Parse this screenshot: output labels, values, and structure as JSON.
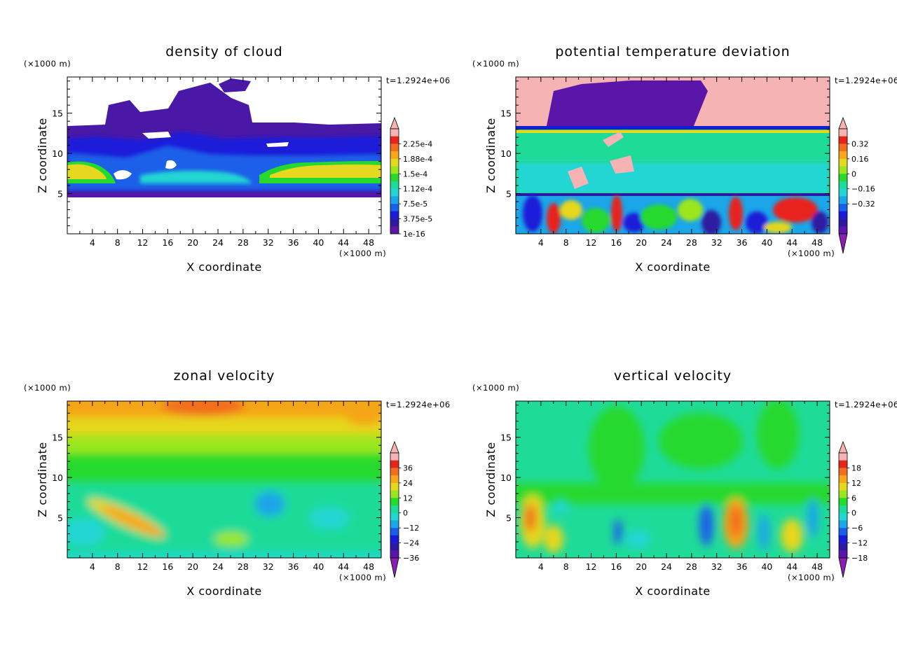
{
  "chart_data": [
    {
      "type": "heatmap",
      "title": "density of cloud",
      "xlabel": "X coordinate",
      "ylabel": "Z coordinate",
      "x_unit": "(×1000 m)",
      "y_unit": "(×1000 m)",
      "time_label": "t=1.2924e+06",
      "xlim": [
        0,
        50
      ],
      "ylim": [
        0,
        19.5
      ],
      "x_ticks": [
        "4",
        "8",
        "12",
        "16",
        "20",
        "24",
        "28",
        "32",
        "36",
        "40",
        "44",
        "48"
      ],
      "y_ticks": [
        "5",
        "10",
        "15"
      ],
      "colorbar_labels": [
        "2.25e-4",
        "1.88e-4",
        "1.5e-4",
        "1.12e-4",
        "7.5e-5",
        "3.75e-5",
        "1e-16"
      ],
      "colorbar_colors": [
        "#f5b3b3",
        "#e8231c",
        "#f26d1f",
        "#f5a619",
        "#e6d71f",
        "#9ce61f",
        "#27d92e",
        "#1fdb99",
        "#22d6d3",
        "#1aa6e8",
        "#1a5fe8",
        "#1a1ad9",
        "#2d1aa3",
        "#5a16a8"
      ],
      "colorbar_extend": "none"
    },
    {
      "type": "heatmap",
      "title": "potential temperature deviation",
      "xlabel": "X coordinate",
      "ylabel": "Z coordinate",
      "x_unit": "(×1000 m)",
      "y_unit": "(×1000 m)",
      "time_label": "t=1.2924e+06",
      "xlim": [
        0,
        50
      ],
      "ylim": [
        0,
        19.5
      ],
      "x_ticks": [
        "4",
        "8",
        "12",
        "16",
        "20",
        "24",
        "28",
        "32",
        "36",
        "40",
        "44",
        "48"
      ],
      "y_ticks": [
        "5",
        "10",
        "15"
      ],
      "colorbar_labels": [
        "0.32",
        "0.16",
        "0",
        "−0.16",
        "−0.32"
      ],
      "colorbar_colors": [
        "#f5b3b3",
        "#e8231c",
        "#f26d1f",
        "#f5a619",
        "#e6d71f",
        "#9ce61f",
        "#27d92e",
        "#1fdb99",
        "#22d6d3",
        "#1aa6e8",
        "#1a5fe8",
        "#1a1ad9",
        "#2d1aa3",
        "#5a16a8"
      ],
      "colorbar_extend": "both"
    },
    {
      "type": "heatmap",
      "title": "zonal velocity",
      "xlabel": "X coordinate",
      "ylabel": "Z coordinate",
      "x_unit": "(×1000 m)",
      "y_unit": "(×1000 m)",
      "time_label": "t=1.2924e+06",
      "xlim": [
        0,
        50
      ],
      "ylim": [
        0,
        19.5
      ],
      "x_ticks": [
        "4",
        "8",
        "12",
        "16",
        "20",
        "24",
        "28",
        "32",
        "36",
        "40",
        "44",
        "48"
      ],
      "y_ticks": [
        "5",
        "10",
        "15"
      ],
      "colorbar_labels": [
        "36",
        "24",
        "12",
        "0",
        "−12",
        "−24",
        "−36"
      ],
      "colorbar_colors": [
        "#f5b3b3",
        "#e8231c",
        "#f26d1f",
        "#f5a619",
        "#e6d71f",
        "#9ce61f",
        "#27d92e",
        "#1fdb99",
        "#22d6d3",
        "#1aa6e8",
        "#1a5fe8",
        "#1a1ad9",
        "#2d1aa3",
        "#5a16a8"
      ],
      "colorbar_extend": "both"
    },
    {
      "type": "heatmap",
      "title": "vertical velocity",
      "xlabel": "X coordinate",
      "ylabel": "Z coordinate",
      "x_unit": "(×1000 m)",
      "y_unit": "(×1000 m)",
      "time_label": "t=1.2924e+06",
      "xlim": [
        0,
        50
      ],
      "ylim": [
        0,
        19.5
      ],
      "x_ticks": [
        "4",
        "8",
        "12",
        "16",
        "20",
        "24",
        "28",
        "32",
        "36",
        "40",
        "44",
        "48"
      ],
      "y_ticks": [
        "5",
        "10",
        "15"
      ],
      "colorbar_labels": [
        "18",
        "12",
        "6",
        "0",
        "−6",
        "−12",
        "−18"
      ],
      "colorbar_colors": [
        "#f5b3b3",
        "#e8231c",
        "#f26d1f",
        "#f5a619",
        "#e6d71f",
        "#9ce61f",
        "#27d92e",
        "#1fdb99",
        "#22d6d3",
        "#1aa6e8",
        "#1a5fe8",
        "#1a1ad9",
        "#2d1aa3",
        "#5a16a8"
      ],
      "colorbar_extend": "both"
    }
  ]
}
